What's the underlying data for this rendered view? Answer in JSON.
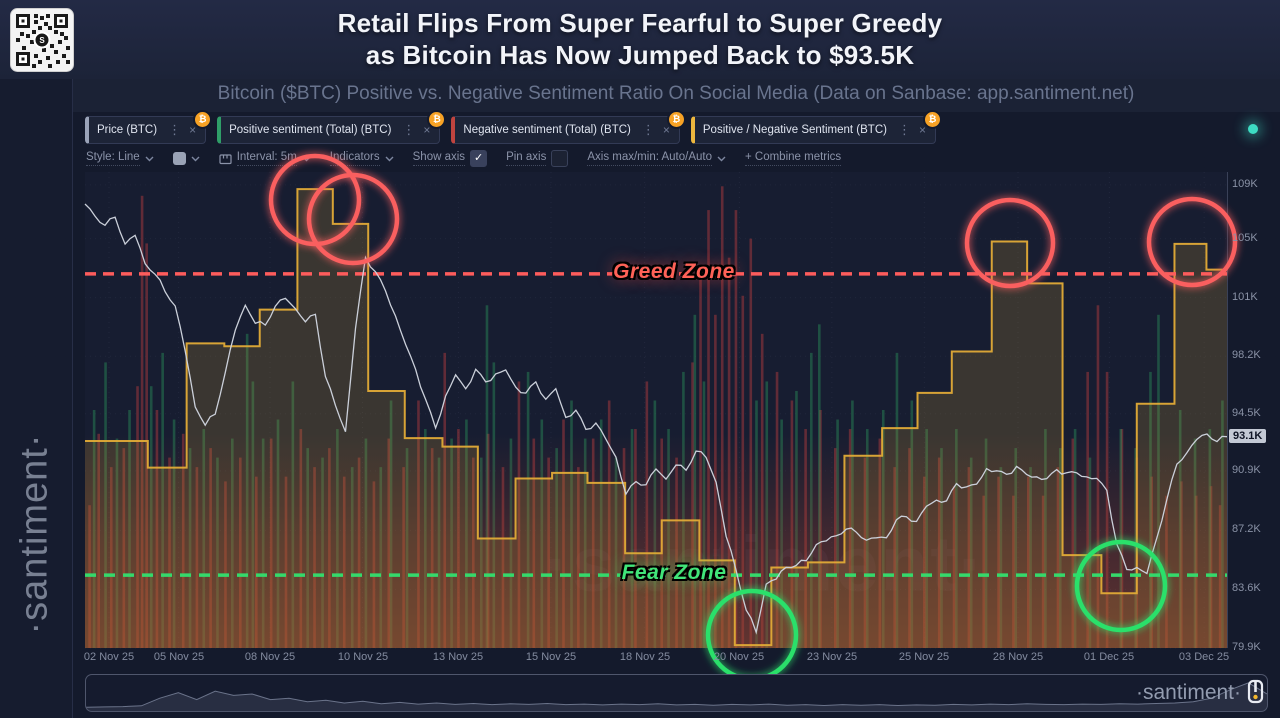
{
  "header": {
    "title_line1": "Retail Flips From Super Fearful to Super Greedy",
    "title_line2": "as Bitcoin Has Now Jumped Back to $93.5K"
  },
  "subtitle": "Bitcoin ($BTC) Positive vs. Negative Sentiment Ratio On Social Media (Data on Sanbase: app.santiment.net)",
  "sidebar": {
    "watermark": "·santiment·"
  },
  "metric_chips": [
    {
      "id": "price-btc",
      "label": "Price (BTC)",
      "accent": "#9aa3b8",
      "badge": "₿"
    },
    {
      "id": "positive-sentiment",
      "label": "Positive sentiment (Total) (BTC)",
      "accent": "#2f9e68",
      "badge": "₿"
    },
    {
      "id": "negative-sentiment",
      "label": "Negative sentiment (Total) (BTC)",
      "accent": "#c0443f",
      "badge": "₿"
    },
    {
      "id": "pos-neg-ratio",
      "label": "Positive / Negative Sentiment (BTC)",
      "accent": "#edb73e",
      "badge": "₿"
    }
  ],
  "toolbar": {
    "items": [
      {
        "type": "dropdown",
        "label": "Style: Line"
      },
      {
        "type": "swatch",
        "label": ""
      },
      {
        "type": "dropdown",
        "icon": "interval-icon",
        "label": "Interval: 5m"
      },
      {
        "type": "dropdown",
        "label": "Indicators"
      },
      {
        "type": "checkbox",
        "label": "Show axis",
        "checked": true
      },
      {
        "type": "checkbox",
        "label": "Pin axis",
        "checked": false
      },
      {
        "type": "dropdown",
        "label": "Axis max/min: Auto/Auto"
      },
      {
        "type": "button",
        "label": "+ Combine metrics"
      }
    ]
  },
  "chart_data": {
    "type": "line",
    "description": "BTC price line with positive/negative social sentiment bars and positive/negative sentiment ratio step line",
    "x_axis": {
      "ticks": [
        {
          "label": "02 Nov 25",
          "pos": 2.1
        },
        {
          "label": "05 Nov 25",
          "pos": 8.2
        },
        {
          "label": "08 Nov 25",
          "pos": 16.2
        },
        {
          "label": "10 Nov 25",
          "pos": 24.3
        },
        {
          "label": "13 Nov 25",
          "pos": 32.7
        },
        {
          "label": "15 Nov 25",
          "pos": 40.8
        },
        {
          "label": "18 Nov 25",
          "pos": 49.0
        },
        {
          "label": "20 Nov 25",
          "pos": 57.3
        },
        {
          "label": "23 Nov 25",
          "pos": 65.4
        },
        {
          "label": "25 Nov 25",
          "pos": 73.5
        },
        {
          "label": "28 Nov 25",
          "pos": 81.7
        },
        {
          "label": "01 Dec 25",
          "pos": 89.7
        },
        {
          "label": "03 Dec 25",
          "pos": 98.0
        }
      ]
    },
    "y_axis": {
      "unit": "USD",
      "ticks": [
        {
          "label": "109K",
          "pos": 2.7
        },
        {
          "label": "105K",
          "pos": 14.0
        },
        {
          "label": "101K",
          "pos": 26.4
        },
        {
          "label": "98.2K",
          "pos": 38.7
        },
        {
          "label": "94.5K",
          "pos": 50.8
        },
        {
          "label": "90.9K",
          "pos": 62.8
        },
        {
          "label": "87.2K",
          "pos": 75.3
        },
        {
          "label": "83.6K",
          "pos": 87.7
        },
        {
          "label": "79.9K",
          "pos": 100
        }
      ],
      "current_price": {
        "label": "93.1K",
        "pos": 55.9
      }
    },
    "price_map": {
      "top_value": 109,
      "top_pos": 2.7,
      "bottom_value": 79.9,
      "bottom_pos": 100
    },
    "series": {
      "price": {
        "name": "Price (BTC)",
        "color": "#cbd0da",
        "values": [
          107.8,
          107.0,
          106.5,
          106.9,
          105.3,
          105.8,
          104.0,
          103.4,
          102.2,
          101.4,
          98.5,
          95.0,
          93.9,
          94.5,
          97.2,
          99.8,
          101.4,
          100.3,
          100.1,
          101.4,
          101.8,
          101.2,
          100.4,
          100.8,
          97.0,
          95.1,
          93.5,
          100.0,
          104.4,
          103.6,
          102.3,
          100.8,
          99.0,
          97.4,
          95.6,
          93.7,
          95.8,
          97.1,
          96.2,
          97.5,
          96.6,
          97.2,
          97.4,
          96.3,
          96.0,
          96.6,
          95.6,
          96.2,
          94.4,
          94.9,
          93.6,
          94.1,
          93.0,
          91.9,
          89.6,
          90.3,
          90.2,
          91.1,
          90.5,
          91.4,
          91.0,
          92.3,
          91.8,
          90.3,
          86.9,
          84.7,
          82.3,
          80.8,
          83.9,
          84.2,
          84.9,
          85.1,
          85.3,
          86.4,
          86.6,
          86.9,
          87.4,
          87.1,
          86.7,
          86.8,
          86.8,
          88.0,
          88.1,
          87.9,
          88.8,
          89.2,
          89.2,
          90.2,
          90.1,
          90.2,
          91.2,
          91.1,
          90.8,
          91.4,
          90.8,
          90.7,
          90.6,
          91.1,
          91.0,
          90.9,
          90.7,
          90.6,
          89.8,
          86.5,
          84.8,
          85.0,
          84.6,
          86.8,
          89.3,
          91.4,
          92.2,
          93.0,
          93.3,
          92.9,
          93.1
        ]
      },
      "ratio_steps": {
        "name": "Positive / Negative Sentiment (BTC)",
        "color": "#e2ab37",
        "points": [
          [
            0,
            56.5
          ],
          [
            5.5,
            62.1
          ],
          [
            8.9,
            36.0
          ],
          [
            12.2,
            36.6
          ],
          [
            15.3,
            28.9
          ],
          [
            18.6,
            3.6
          ],
          [
            21.7,
            10.9
          ],
          [
            24.8,
            46.0
          ],
          [
            28.0,
            55.9
          ],
          [
            31.3,
            57.7
          ],
          [
            34.4,
            77.0
          ],
          [
            37.7,
            64.4
          ],
          [
            40.9,
            63.2
          ],
          [
            44.0,
            65.3
          ],
          [
            47.3,
            80.1
          ],
          [
            50.5,
            73.2
          ],
          [
            53.8,
            81.6
          ],
          [
            56.9,
            99.4
          ],
          [
            60.1,
            83.1
          ],
          [
            63.3,
            82.0
          ],
          [
            66.5,
            59.6
          ],
          [
            69.8,
            53.8
          ],
          [
            72.9,
            46.4
          ],
          [
            75.9,
            37.7
          ],
          [
            79.4,
            14.6
          ],
          [
            82.5,
            23.4
          ],
          [
            85.6,
            80.5
          ],
          [
            89.0,
            88.5
          ],
          [
            92.1,
            48.7
          ],
          [
            95.4,
            15.1
          ],
          [
            98.2,
            20.5
          ]
        ]
      },
      "negative_bars": {
        "name": "Negative sentiment (Total) (BTC)",
        "color": "#c94040",
        "bars": [
          [
            0.4,
            0.3
          ],
          [
            1.2,
            0.45
          ],
          [
            2.3,
            0.38
          ],
          [
            3.4,
            0.42
          ],
          [
            4.6,
            0.55
          ],
          [
            5.0,
            0.95
          ],
          [
            5.4,
            0.85
          ],
          [
            6.3,
            0.5
          ],
          [
            7.4,
            0.4
          ],
          [
            8.6,
            0.45
          ],
          [
            9.8,
            0.38
          ],
          [
            11.0,
            0.42
          ],
          [
            12.3,
            0.35
          ],
          [
            13.6,
            0.4
          ],
          [
            15.0,
            0.36
          ],
          [
            16.3,
            0.44
          ],
          [
            17.6,
            0.36
          ],
          [
            18.9,
            0.46
          ],
          [
            20.1,
            0.38
          ],
          [
            21.4,
            0.42
          ],
          [
            22.7,
            0.36
          ],
          [
            24.0,
            0.4
          ],
          [
            25.3,
            0.35
          ],
          [
            26.6,
            0.44
          ],
          [
            27.9,
            0.38
          ],
          [
            29.2,
            0.52
          ],
          [
            30.4,
            0.42
          ],
          [
            31.5,
            0.62
          ],
          [
            32.7,
            0.46
          ],
          [
            34.0,
            0.4
          ],
          [
            35.3,
            0.45
          ],
          [
            36.6,
            0.38
          ],
          [
            38.0,
            0.56
          ],
          [
            39.3,
            0.44
          ],
          [
            40.6,
            0.4
          ],
          [
            41.9,
            0.48
          ],
          [
            43.2,
            0.38
          ],
          [
            44.5,
            0.44
          ],
          [
            45.9,
            0.52
          ],
          [
            47.2,
            0.42
          ],
          [
            48.2,
            0.46
          ],
          [
            49.2,
            0.56
          ],
          [
            50.5,
            0.44
          ],
          [
            51.8,
            0.4
          ],
          [
            53.2,
            0.6
          ],
          [
            53.9,
            0.78
          ],
          [
            54.6,
            0.92
          ],
          [
            55.2,
            0.7
          ],
          [
            55.8,
            0.97
          ],
          [
            56.4,
            0.82
          ],
          [
            57.0,
            0.92
          ],
          [
            57.6,
            0.74
          ],
          [
            58.3,
            0.86
          ],
          [
            59.3,
            0.66
          ],
          [
            60.6,
            0.58
          ],
          [
            61.9,
            0.52
          ],
          [
            63.1,
            0.46
          ],
          [
            64.4,
            0.5
          ],
          [
            65.7,
            0.42
          ],
          [
            67.0,
            0.46
          ],
          [
            68.3,
            0.4
          ],
          [
            69.6,
            0.44
          ],
          [
            70.9,
            0.38
          ],
          [
            72.2,
            0.42
          ],
          [
            73.5,
            0.36
          ],
          [
            74.8,
            0.4
          ],
          [
            76.1,
            0.34
          ],
          [
            77.4,
            0.38
          ],
          [
            78.7,
            0.32
          ],
          [
            80.0,
            0.36
          ],
          [
            81.3,
            0.32
          ],
          [
            82.6,
            0.36
          ],
          [
            83.9,
            0.32
          ],
          [
            85.2,
            0.38
          ],
          [
            86.5,
            0.44
          ],
          [
            87.8,
            0.58
          ],
          [
            88.7,
            0.72
          ],
          [
            89.5,
            0.58
          ],
          [
            90.8,
            0.46
          ],
          [
            92.1,
            0.4
          ],
          [
            93.4,
            0.36
          ],
          [
            94.7,
            0.32
          ],
          [
            96.0,
            0.35
          ],
          [
            97.3,
            0.32
          ],
          [
            98.6,
            0.34
          ],
          [
            99.4,
            0.3
          ]
        ]
      },
      "positive_bars": {
        "name": "Positive sentiment (Total) (BTC)",
        "color": "#2e9e5f",
        "bars": [
          [
            0.8,
            0.5
          ],
          [
            1.8,
            0.6
          ],
          [
            2.8,
            0.44
          ],
          [
            3.9,
            0.5
          ],
          [
            5.8,
            0.55
          ],
          [
            6.8,
            0.62
          ],
          [
            7.8,
            0.48
          ],
          [
            9.2,
            0.42
          ],
          [
            10.4,
            0.46
          ],
          [
            11.6,
            0.4
          ],
          [
            12.9,
            0.44
          ],
          [
            14.2,
            0.66
          ],
          [
            14.7,
            0.56
          ],
          [
            15.6,
            0.44
          ],
          [
            16.9,
            0.48
          ],
          [
            18.2,
            0.56
          ],
          [
            19.5,
            0.42
          ],
          [
            20.8,
            0.4
          ],
          [
            22.1,
            0.46
          ],
          [
            23.4,
            0.38
          ],
          [
            24.6,
            0.44
          ],
          [
            25.9,
            0.38
          ],
          [
            26.8,
            0.52
          ],
          [
            28.2,
            0.42
          ],
          [
            29.8,
            0.46
          ],
          [
            31.0,
            0.4
          ],
          [
            32.1,
            0.44
          ],
          [
            33.4,
            0.48
          ],
          [
            34.7,
            0.4
          ],
          [
            35.2,
            0.72
          ],
          [
            35.8,
            0.6
          ],
          [
            37.3,
            0.44
          ],
          [
            38.8,
            0.58
          ],
          [
            40.0,
            0.48
          ],
          [
            41.3,
            0.42
          ],
          [
            42.6,
            0.52
          ],
          [
            43.8,
            0.44
          ],
          [
            45.2,
            0.48
          ],
          [
            46.5,
            0.4
          ],
          [
            47.9,
            0.46
          ],
          [
            49.9,
            0.52
          ],
          [
            51.1,
            0.46
          ],
          [
            52.4,
            0.58
          ],
          [
            53.4,
            0.7
          ],
          [
            54.2,
            0.56
          ],
          [
            58.8,
            0.52
          ],
          [
            59.7,
            0.56
          ],
          [
            61.0,
            0.48
          ],
          [
            62.3,
            0.54
          ],
          [
            63.6,
            0.62
          ],
          [
            64.3,
            0.68
          ],
          [
            65.9,
            0.48
          ],
          [
            67.2,
            0.52
          ],
          [
            68.5,
            0.46
          ],
          [
            69.9,
            0.5
          ],
          [
            71.1,
            0.62
          ],
          [
            72.4,
            0.52
          ],
          [
            73.7,
            0.46
          ],
          [
            75.0,
            0.42
          ],
          [
            76.3,
            0.46
          ],
          [
            77.6,
            0.4
          ],
          [
            78.9,
            0.44
          ],
          [
            80.2,
            0.38
          ],
          [
            81.5,
            0.42
          ],
          [
            82.8,
            0.38
          ],
          [
            84.1,
            0.46
          ],
          [
            85.4,
            0.42
          ],
          [
            86.7,
            0.46
          ],
          [
            88.0,
            0.4
          ],
          [
            90.7,
            0.46
          ],
          [
            92.0,
            0.42
          ],
          [
            93.3,
            0.58
          ],
          [
            94.0,
            0.7
          ],
          [
            95.9,
            0.5
          ],
          [
            97.2,
            0.44
          ],
          [
            98.5,
            0.46
          ],
          [
            99.6,
            0.52
          ]
        ]
      }
    },
    "zones": {
      "greed": {
        "label": "Greed Zone",
        "pos": 21.4,
        "color": "#fd5c5c"
      },
      "fear": {
        "label": "Fear Zone",
        "pos": 84.7,
        "color": "#35d96b"
      }
    },
    "annotations": {
      "red_circles": [
        {
          "cx": 230,
          "cy": 28,
          "r": 44
        },
        {
          "cx": 268,
          "cy": 47,
          "r": 44
        },
        {
          "cx": 925,
          "cy": 71,
          "r": 43
        },
        {
          "cx": 1107,
          "cy": 70,
          "r": 43
        }
      ],
      "green_circles": [
        {
          "cx": 667,
          "cy": 463,
          "r": 44
        },
        {
          "cx": 1036,
          "cy": 414,
          "r": 44
        }
      ]
    }
  },
  "chart_watermark": "·santiment·",
  "minimap": {
    "values": [
      0.03,
      0.04,
      0.05,
      0.08,
      0.35,
      0.55,
      0.3,
      0.6,
      0.45,
      0.5,
      0.3,
      0.35,
      0.22,
      0.28,
      0.18,
      0.24,
      0.15,
      0.2,
      0.14,
      0.18,
      0.13,
      0.16,
      0.12,
      0.15,
      0.13,
      0.16,
      0.12,
      0.14,
      0.11,
      0.14,
      0.12,
      0.15,
      0.11,
      0.13,
      0.1,
      0.13,
      0.11,
      0.14,
      0.1,
      0.12,
      0.09,
      0.12,
      0.1,
      0.12,
      0.09,
      0.11,
      0.1,
      0.13,
      0.11,
      0.14,
      0.12,
      0.15,
      0.13,
      0.12,
      0.14,
      0.13,
      0.15,
      0.14,
      0.16,
      0.18,
      0.22,
      0.35,
      0.65,
      0.9,
      0.5
    ]
  },
  "branding": {
    "wordmark": "·santiment·"
  }
}
